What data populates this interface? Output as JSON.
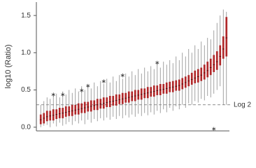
{
  "chart_data": {
    "type": "boxplot",
    "y_label": "log10 (Ratio)",
    "ylim": [
      -0.05,
      1.68
    ],
    "yticks": [
      {
        "value": 0,
        "label": "0.0"
      },
      {
        "value": 0.5,
        "label": "0.5"
      },
      {
        "value": 1,
        "label": "1.0"
      },
      {
        "value": 1.5,
        "label": "1.5"
      }
    ],
    "box_color": "#b0282a",
    "whisker_color": "#8a8a8a",
    "reference_line": {
      "value": 0.3,
      "label": "Log 2"
    },
    "low": [
      0.0,
      0.02,
      0.03,
      0.0,
      0.05,
      0.01,
      0.06,
      0.02,
      0.04,
      0.07,
      0.03,
      0.08,
      0.05,
      0.09,
      0.04,
      0.1,
      0.06,
      0.11,
      0.08,
      0.12,
      0.09,
      0.13,
      0.1,
      0.14,
      0.11,
      0.15,
      0.12,
      0.16,
      0.13,
      0.17,
      0.14,
      0.18,
      0.15,
      0.19,
      0.16,
      0.2,
      0.17,
      0.22,
      0.19,
      0.24,
      0.2,
      0.26,
      0.22,
      0.28,
      0.24,
      0.3,
      0.26,
      0.32,
      0.3,
      0.35,
      0.33,
      0.38,
      0.36,
      0.42,
      0.4,
      0.45,
      0.5,
      0.55,
      0.3,
      0.3
    ],
    "q1": [
      0.04,
      0.05,
      0.08,
      0.09,
      0.09,
      0.11,
      0.12,
      0.12,
      0.14,
      0.15,
      0.15,
      0.17,
      0.17,
      0.19,
      0.19,
      0.21,
      0.21,
      0.23,
      0.23,
      0.25,
      0.25,
      0.27,
      0.27,
      0.29,
      0.29,
      0.31,
      0.31,
      0.33,
      0.33,
      0.35,
      0.35,
      0.37,
      0.37,
      0.39,
      0.39,
      0.41,
      0.41,
      0.43,
      0.43,
      0.45,
      0.45,
      0.47,
      0.47,
      0.49,
      0.49,
      0.51,
      0.53,
      0.55,
      0.57,
      0.59,
      0.6,
      0.62,
      0.64,
      0.67,
      0.7,
      0.74,
      0.77,
      0.83,
      0.92,
      0.95
    ],
    "median": [
      0.1,
      0.12,
      0.14,
      0.15,
      0.16,
      0.17,
      0.18,
      0.19,
      0.2,
      0.21,
      0.22,
      0.23,
      0.24,
      0.25,
      0.26,
      0.27,
      0.28,
      0.29,
      0.3,
      0.31,
      0.32,
      0.33,
      0.34,
      0.35,
      0.36,
      0.37,
      0.38,
      0.39,
      0.4,
      0.41,
      0.42,
      0.43,
      0.44,
      0.45,
      0.46,
      0.47,
      0.48,
      0.49,
      0.5,
      0.51,
      0.52,
      0.53,
      0.54,
      0.55,
      0.56,
      0.58,
      0.6,
      0.62,
      0.64,
      0.66,
      0.68,
      0.7,
      0.73,
      0.76,
      0.8,
      0.84,
      0.88,
      0.95,
      1.05,
      1.2
    ],
    "q3": [
      0.17,
      0.19,
      0.22,
      0.22,
      0.24,
      0.24,
      0.26,
      0.26,
      0.28,
      0.28,
      0.3,
      0.3,
      0.32,
      0.32,
      0.34,
      0.34,
      0.36,
      0.36,
      0.38,
      0.38,
      0.4,
      0.4,
      0.42,
      0.42,
      0.44,
      0.44,
      0.46,
      0.46,
      0.48,
      0.48,
      0.5,
      0.5,
      0.52,
      0.52,
      0.54,
      0.54,
      0.56,
      0.56,
      0.58,
      0.58,
      0.6,
      0.61,
      0.62,
      0.63,
      0.64,
      0.66,
      0.68,
      0.7,
      0.73,
      0.76,
      0.78,
      0.8,
      0.84,
      0.88,
      0.92,
      0.97,
      1.02,
      1.1,
      1.22,
      1.48
    ],
    "high": [
      0.3,
      0.35,
      0.4,
      0.38,
      0.42,
      0.45,
      0.4,
      0.48,
      0.44,
      0.5,
      0.46,
      0.52,
      0.48,
      0.55,
      0.5,
      0.57,
      0.52,
      0.6,
      0.55,
      0.62,
      0.58,
      0.65,
      0.6,
      0.68,
      0.62,
      0.7,
      0.65,
      0.72,
      0.68,
      0.75,
      0.7,
      0.78,
      0.72,
      0.8,
      0.75,
      0.82,
      0.78,
      0.85,
      0.8,
      0.88,
      0.84,
      0.9,
      0.86,
      0.95,
      0.9,
      1.0,
      0.95,
      1.05,
      1.0,
      1.1,
      1.05,
      1.15,
      1.1,
      1.2,
      1.18,
      1.3,
      1.4,
      1.5,
      1.58,
      1.55
    ],
    "outliers": {
      "x": [
        4,
        7,
        13,
        15,
        20,
        26,
        37,
        55
      ],
      "values": [
        0.45,
        0.45,
        0.51,
        0.57,
        0.63,
        0.71,
        0.88,
        -0.01
      ]
    }
  }
}
